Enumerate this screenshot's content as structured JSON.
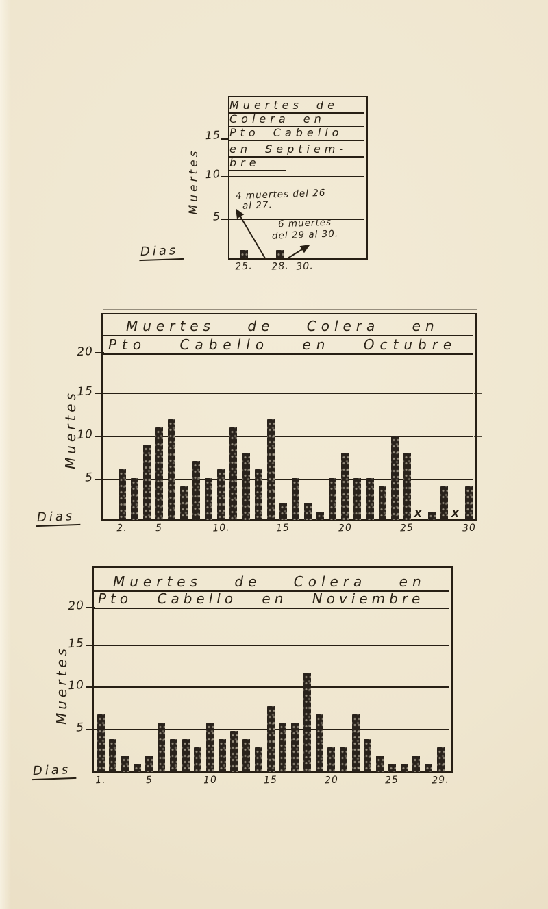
{
  "colors": {
    "paper": "#efe6cf",
    "ink": "#271f14",
    "bar": "#29221b"
  },
  "chart_data": [
    {
      "id": "septiembre",
      "type": "bar",
      "title": "Muertes de Colera en Pto Cabello en Septiembre",
      "title_lines": [
        "Muertes de",
        "Colera en",
        "Pto Cabello",
        "en Septiem-",
        "bre"
      ],
      "ylabel": "Muertes",
      "xlabel": "Dias",
      "ylim": [
        0,
        20
      ],
      "yticks": [
        5,
        10,
        15
      ],
      "yticks_shown": [
        "15",
        "10",
        "5"
      ],
      "x": [
        25,
        28
      ],
      "values": [
        1,
        1
      ],
      "x_tick_labels": [
        {
          "day": 25,
          "label": "25."
        },
        {
          "day": 28,
          "label": "28."
        },
        {
          "day": 30,
          "label": "30."
        }
      ],
      "annotations": [
        {
          "lines": [
            "4 muertes del 26",
            "al 27."
          ],
          "text": "4 muertes del 26 al 27."
        },
        {
          "lines": [
            "6 muertes",
            "del 29 al 30."
          ],
          "text": "6 muertes del 29 al 30."
        }
      ]
    },
    {
      "id": "octubre",
      "type": "bar",
      "title": "Muertes de Colera en Pto Cabello en Octubre",
      "title_lines": [
        "Muertes de Colera en",
        "Pto Cabello en Octubre"
      ],
      "ylabel": "Muertes",
      "xlabel": "Dias",
      "ylim": [
        0,
        21
      ],
      "yticks": [
        5,
        10,
        15,
        20
      ],
      "yticks_shown": [
        "20",
        "15",
        "10",
        "5"
      ],
      "x": [
        2,
        3,
        4,
        5,
        6,
        7,
        8,
        9,
        10,
        11,
        12,
        13,
        14,
        15,
        16,
        17,
        18,
        19,
        20,
        21,
        22,
        23,
        24,
        25,
        26,
        27,
        28,
        29,
        30
      ],
      "values": [
        6,
        5,
        9,
        11,
        12,
        4,
        7,
        5,
        6,
        11,
        8,
        6,
        12,
        2,
        5,
        2,
        1,
        5,
        8,
        5,
        5,
        4,
        10,
        8,
        0,
        1,
        4,
        0,
        4
      ],
      "zero_marked_days": [
        26,
        29
      ],
      "x_tick_labels": [
        {
          "day": 2,
          "label": "2."
        },
        {
          "day": 5,
          "label": "5"
        },
        {
          "day": 10,
          "label": "10."
        },
        {
          "day": 15,
          "label": "15"
        },
        {
          "day": 20,
          "label": "20"
        },
        {
          "day": 25,
          "label": "25"
        },
        {
          "day": 30,
          "label": "30"
        }
      ]
    },
    {
      "id": "noviembre",
      "type": "bar",
      "title": "Muertes de Colera en Pto Cabello en Noviembre",
      "title_lines": [
        "Muertes de Colera en",
        "Pto Cabello en Noviembre"
      ],
      "ylabel": "Muertes",
      "xlabel": "Dias",
      "ylim": [
        0,
        21
      ],
      "yticks": [
        5,
        10,
        15,
        20
      ],
      "yticks_shown": [
        "20",
        "15",
        "10",
        "5"
      ],
      "x": [
        1,
        2,
        3,
        4,
        5,
        6,
        7,
        8,
        9,
        10,
        11,
        12,
        13,
        14,
        15,
        16,
        17,
        18,
        19,
        20,
        21,
        22,
        23,
        24,
        25,
        26,
        27,
        28,
        29
      ],
      "values": [
        7,
        4,
        2,
        1,
        2,
        6,
        4,
        4,
        3,
        6,
        4,
        5,
        4,
        3,
        8,
        6,
        6,
        12,
        7,
        3,
        3,
        7,
        4,
        2,
        1,
        1,
        2,
        1,
        3
      ],
      "x_tick_labels": [
        {
          "day": 1,
          "label": "1."
        },
        {
          "day": 5,
          "label": "5"
        },
        {
          "day": 10,
          "label": "10"
        },
        {
          "day": 15,
          "label": "15"
        },
        {
          "day": 20,
          "label": "20"
        },
        {
          "day": 25,
          "label": "25"
        },
        {
          "day": 29,
          "label": "29."
        }
      ]
    }
  ]
}
